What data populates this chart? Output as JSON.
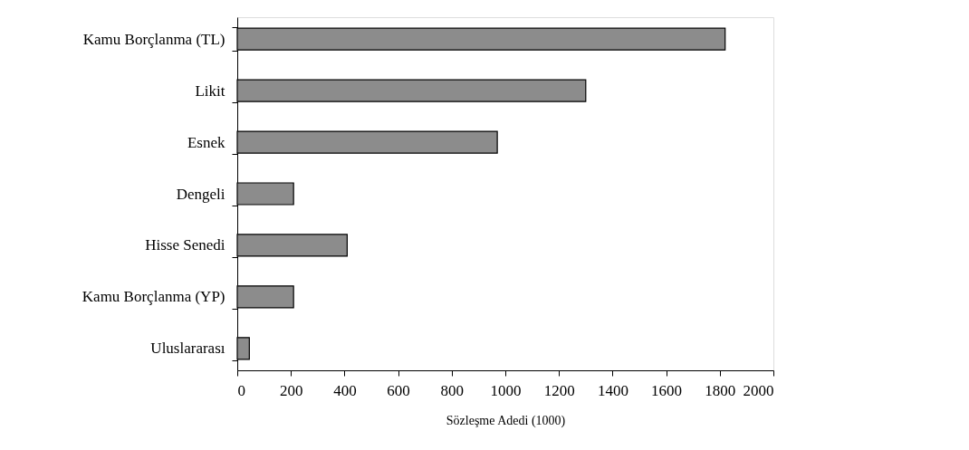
{
  "chart_data": {
    "type": "bar",
    "orientation": "horizontal",
    "categories": [
      "Kamu Borçlanma (TL)",
      "Likit",
      "Esnek",
      "Dengeli",
      "Hisse Senedi",
      "Kamu Borçlanma (YP)",
      "Uluslararası"
    ],
    "values": [
      1820,
      1300,
      970,
      210,
      410,
      210,
      45
    ],
    "color": "#8c8c8c",
    "xlabel": "Sözleşme Adedi (1000)",
    "xlim": [
      0,
      2000
    ],
    "xticks": [
      0,
      200,
      400,
      600,
      800,
      1000,
      1200,
      1400,
      1600,
      1800,
      2000
    ],
    "grid": false
  }
}
